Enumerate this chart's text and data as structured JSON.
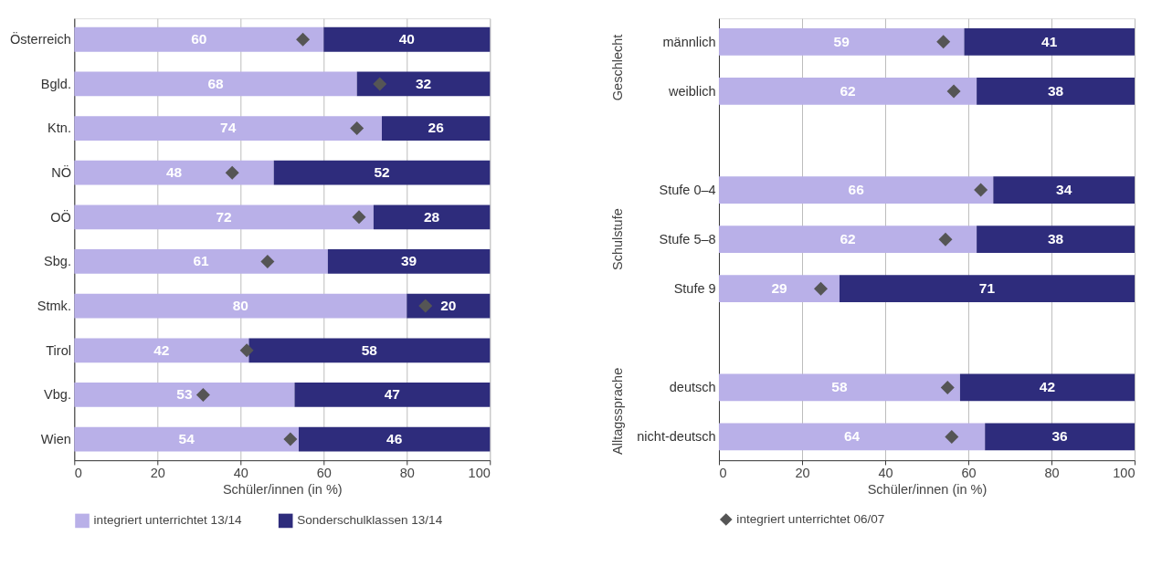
{
  "chart_data": [
    {
      "type": "bar",
      "orientation": "horizontal",
      "stacked": true,
      "categories": [
        "Österreich",
        "Bgld.",
        "Ktn.",
        "NÖ",
        "OÖ",
        "Sbg.",
        "Stmk.",
        "Tirol",
        "Vbg.",
        "Wien"
      ],
      "series": [
        {
          "name": "integriert unterrichtet 13/14",
          "color": "#b9b0e8",
          "values": [
            60,
            68,
            74,
            48,
            72,
            61,
            80,
            42,
            53,
            54
          ],
          "value_labels": [
            "60",
            "68",
            "74",
            "48",
            "72",
            "61",
            "80",
            "42",
            "53",
            "54"
          ]
        },
        {
          "name": "Sonderschulklassen 13/14",
          "color": "#2e2c7c",
          "values": [
            40,
            32,
            26,
            52,
            28,
            39,
            20,
            58,
            47,
            46
          ],
          "value_labels": [
            "40",
            "32",
            "26",
            "52",
            "28",
            "39",
            "20",
            "58",
            "47",
            "46"
          ]
        },
        {
          "color": "#555555",
          "type": "scatter",
          "marker": "diamond",
          "values": [
            55,
            73.5,
            68,
            38,
            68.5,
            46.5,
            84.5,
            41.5,
            31,
            52
          ]
        }
      ],
      "xlabel": "Schüler/innen (in %)",
      "xlim": [
        0,
        100
      ],
      "xticks": [
        0,
        20,
        40,
        60,
        80,
        100
      ],
      "grid": "x",
      "legend": "bottom"
    },
    {
      "type": "bar",
      "orientation": "horizontal",
      "stacked": true,
      "categories": [
        "männlich",
        "weiblich",
        null,
        "Stufe 0–4",
        "Stufe 5–8",
        "Stufe 9",
        null,
        "deutsch",
        "nicht-deutsch"
      ],
      "series": [
        {
          "color": "#b9b0e8",
          "values": [
            59,
            62,
            null,
            66,
            62,
            29,
            null,
            58,
            64
          ],
          "value_labels": [
            "59",
            "62",
            null,
            "66",
            "62",
            "29",
            null,
            "58",
            "64"
          ]
        },
        {
          "color": "#2e2c7c",
          "values": [
            41,
            38,
            null,
            34,
            38,
            71,
            null,
            42,
            36
          ],
          "value_labels": [
            "41",
            "38",
            null,
            "34",
            "38",
            "71",
            null,
            "42",
            "36"
          ]
        },
        {
          "name": "integriert unterrichtet 06/07",
          "color": "#555555",
          "type": "scatter",
          "marker": "diamond",
          "values": [
            54,
            56.5,
            null,
            63,
            54.5,
            24.5,
            null,
            55,
            56
          ]
        }
      ],
      "annotations": [
        "Geschlecht",
        "Schulstufe",
        "Alltagssprache"
      ],
      "xlabel": "Schüler/innen (in %)",
      "xlim": [
        0,
        100
      ],
      "xticks": [
        0,
        20,
        40,
        60,
        80,
        100
      ],
      "grid": "x",
      "legend": "bottom"
    }
  ]
}
